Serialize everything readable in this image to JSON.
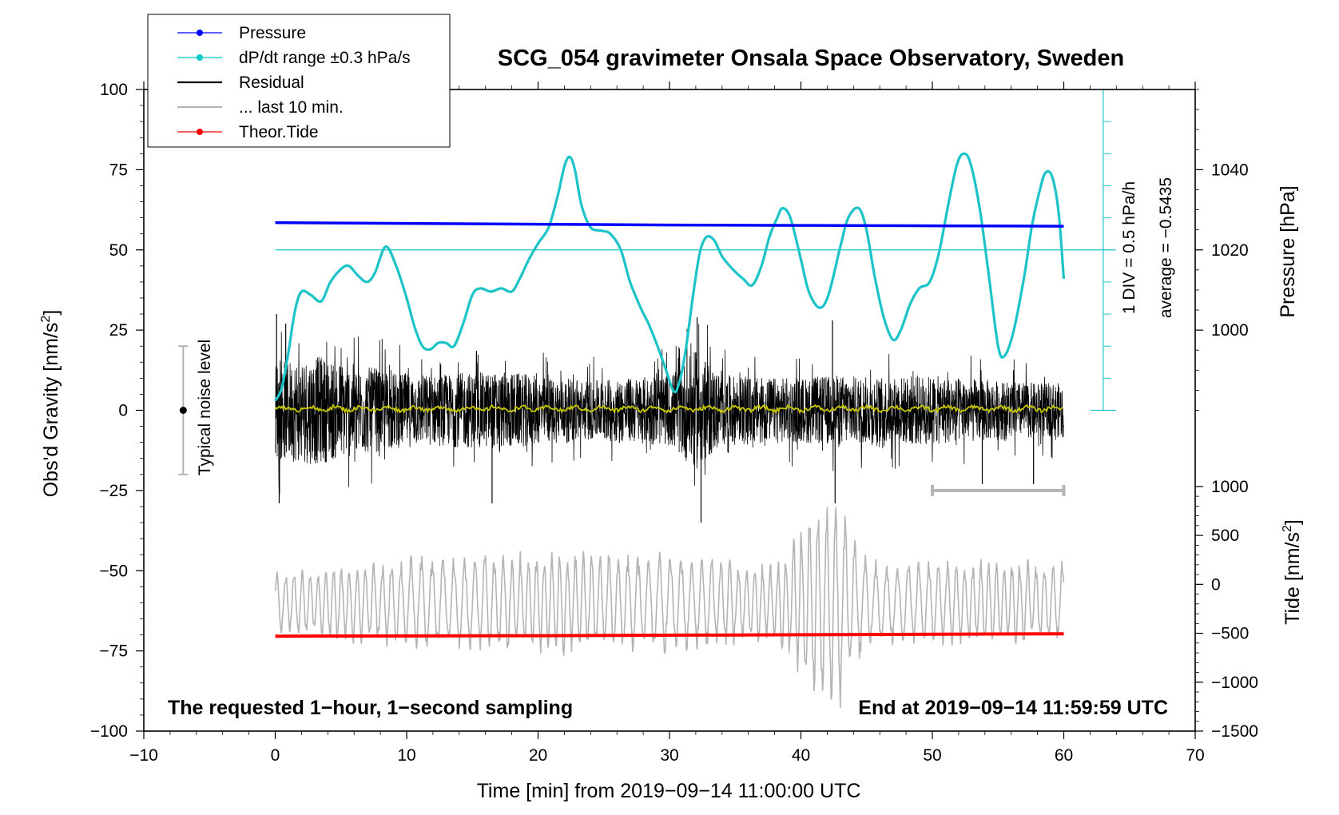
{
  "chart_data": {
    "type": "line",
    "title": "SCG_054 gravimeter Onsala Space Observatory, Sweden",
    "xlabel": "Time [min] from 2019−09−14 11:00:00 UTC",
    "ylabel_left_main": "Obs'd Gravity [nm/s",
    "ylabel_left_sup": "2",
    "ylabel_left_close": "]",
    "ylabel_right_pressure": "Pressure [hPa]",
    "ylabel_right_tide_main": "Tide [nm/s",
    "ylabel_right_tide_sup": "2",
    "ylabel_right_tide_close": "]",
    "xlim": [
      -10,
      70
    ],
    "ylim": [
      -100,
      100
    ],
    "pressure_range": [
      980,
      1060
    ],
    "tide_range": [
      -1500,
      1000
    ],
    "x_ticks": [
      {
        "value": -10,
        "label": "−10"
      },
      {
        "value": 0,
        "label": "0"
      },
      {
        "value": 10,
        "label": "10"
      },
      {
        "value": 20,
        "label": "20"
      },
      {
        "value": 30,
        "label": "30"
      },
      {
        "value": 40,
        "label": "40"
      },
      {
        "value": 50,
        "label": "50"
      },
      {
        "value": 60,
        "label": "60"
      },
      {
        "value": 70,
        "label": "70"
      }
    ],
    "y_ticks": [
      {
        "value": 100,
        "label": "100"
      },
      {
        "value": 75,
        "label": "75"
      },
      {
        "value": 50,
        "label": "50"
      },
      {
        "value": 25,
        "label": "25"
      },
      {
        "value": 0,
        "label": "0"
      },
      {
        "value": -25,
        "label": "−25"
      },
      {
        "value": -50,
        "label": "−50"
      },
      {
        "value": -75,
        "label": "−75"
      },
      {
        "value": -100,
        "label": "−100"
      }
    ],
    "pressure_ticks": [
      {
        "value": 1040,
        "label": "1040"
      },
      {
        "value": 1020,
        "label": "1020"
      },
      {
        "value": 1000,
        "label": "1000"
      }
    ],
    "tide_ticks": [
      {
        "value": 1000,
        "label": "1000"
      },
      {
        "value": 500,
        "label": "500"
      },
      {
        "value": 0,
        "label": "0"
      },
      {
        "value": -500,
        "label": "−500"
      },
      {
        "value": -1000,
        "label": "−1000"
      },
      {
        "value": -1500,
        "label": "−1500"
      }
    ],
    "legend": [
      {
        "label": "Pressure",
        "color": "#0000ff",
        "marker": true
      },
      {
        "label": "dP/dt range ±0.3 hPa/s",
        "color": "#00c8c8",
        "marker": true
      },
      {
        "label": "Residual",
        "color": "#000000",
        "marker": false
      },
      {
        "label": "... last 10 min.",
        "color": "#b4b4b4",
        "marker": false
      },
      {
        "label": "Theor.Tide",
        "color": "#ff0000",
        "marker": true
      }
    ],
    "colors": {
      "pressure": "#0000ff",
      "dpdt": "#1cc3c8",
      "residual": "#000000",
      "smoothed": "#c8c800",
      "last10": "#b4b4b4",
      "tide": "#ff0000",
      "noise": "#b4b4b4"
    },
    "series": [
      {
        "name": "Pressure",
        "axis": "pressure",
        "x": [
          0,
          10,
          20,
          30,
          40,
          50,
          60
        ],
        "values": [
          1026.8,
          1026.6,
          1026.4,
          1026.2,
          1026.1,
          1026.0,
          1025.9
        ]
      },
      {
        "name": "dP/dt",
        "axis": "left",
        "x": [
          0,
          0.5,
          1,
          1.5,
          2,
          2.7,
          3.5,
          4.2,
          5,
          5.6,
          6.3,
          7,
          7.6,
          8.4,
          9.2,
          10,
          10.6,
          11.2,
          11.8,
          12.4,
          13,
          13.6,
          14.3,
          15,
          15.6,
          16.4,
          17.2,
          18,
          18.6,
          19.3,
          20,
          20.8,
          21.5,
          22,
          22.4,
          22.8,
          23.3,
          24,
          24.8,
          25.5,
          26.3,
          27,
          27.8,
          28.4,
          29,
          29.7,
          30.3,
          30.7,
          31.2,
          31.8,
          32.3,
          32.8,
          33.4,
          34,
          34.8,
          35.6,
          36.3,
          37,
          37.6,
          38.2,
          38.6,
          39.2,
          40,
          40.6,
          41.4,
          42.1,
          43,
          43.6,
          44.4,
          45,
          45.6,
          46.3,
          47,
          47.6,
          48.3,
          49,
          49.8,
          50.5,
          51.3,
          51.9,
          52.4,
          52.9,
          53.6,
          54.3,
          55,
          55.5,
          56.2,
          57,
          57.6,
          58.2,
          58.6,
          59.1,
          59.6,
          60
        ],
        "values": [
          3,
          7,
          18,
          31,
          37,
          36,
          34,
          40,
          44,
          45,
          42,
          40,
          43,
          51,
          45,
          35,
          26,
          20,
          19,
          21,
          21,
          20,
          27,
          36,
          38,
          37,
          38,
          37,
          41,
          47,
          52,
          57,
          67,
          76,
          79,
          75,
          64,
          57,
          56,
          55,
          50,
          40,
          32,
          27,
          21,
          13,
          6,
          8,
          18,
          36,
          49,
          54,
          53,
          48,
          44,
          41,
          39,
          45,
          54,
          60,
          63,
          60,
          47,
          37,
          32,
          36,
          51,
          60,
          63,
          56,
          42,
          29,
          22,
          25,
          33,
          38,
          40,
          49,
          66,
          77,
          80,
          77,
          63,
          42,
          20,
          17,
          25,
          42,
          58,
          69,
          74,
          73,
          62,
          41
        ]
      },
      {
        "name": "Theor.Tide",
        "axis": "tide",
        "x": [
          0,
          20,
          40,
          60
        ],
        "values": [
          -530,
          -525,
          -515,
          -505
        ]
      }
    ],
    "residual": {
      "name": "Residual",
      "x_start": 0,
      "x_end": 60,
      "amplitude_profile": [
        {
          "x": 0,
          "amp": 18
        },
        {
          "x": 3,
          "amp": 20
        },
        {
          "x": 6,
          "amp": 17
        },
        {
          "x": 9,
          "amp": 14
        },
        {
          "x": 12,
          "amp": 13
        },
        {
          "x": 15,
          "amp": 14
        },
        {
          "x": 18,
          "amp": 14
        },
        {
          "x": 21,
          "amp": 12
        },
        {
          "x": 24,
          "amp": 11
        },
        {
          "x": 27,
          "amp": 12
        },
        {
          "x": 30,
          "amp": 13
        },
        {
          "x": 32,
          "amp": 22
        },
        {
          "x": 34,
          "amp": 13
        },
        {
          "x": 37,
          "amp": 12
        },
        {
          "x": 40,
          "amp": 12
        },
        {
          "x": 43,
          "amp": 13
        },
        {
          "x": 46,
          "amp": 12
        },
        {
          "x": 49,
          "amp": 13
        },
        {
          "x": 52,
          "amp": 12
        },
        {
          "x": 55,
          "amp": 11
        },
        {
          "x": 58,
          "amp": 10
        },
        {
          "x": 60,
          "amp": 10
        }
      ],
      "spikes": [
        {
          "x": 0.1,
          "value": 30
        },
        {
          "x": 0.3,
          "value": -29
        },
        {
          "x": 0.8,
          "value": 27
        },
        {
          "x": 16.5,
          "value": -29
        },
        {
          "x": 32.1,
          "value": 29
        },
        {
          "x": 32.4,
          "value": -35
        },
        {
          "x": 42.4,
          "value": 28
        },
        {
          "x": 42.6,
          "value": -29
        },
        {
          "x": 53.8,
          "value": -23
        },
        {
          "x": 57.7,
          "value": -23
        }
      ]
    },
    "smoothed_residual": {
      "name": "smoothed residual",
      "level": 0.5,
      "ripple": 1.2
    },
    "last_10_min": {
      "name": "... last 10 min.",
      "x_start": 0,
      "x_end": 60,
      "center": -60,
      "amplitude_profile": [
        {
          "x": 0,
          "amp": 10
        },
        {
          "x": 10,
          "amp": 15
        },
        {
          "x": 20,
          "amp": 17
        },
        {
          "x": 30,
          "amp": 16
        },
        {
          "x": 38,
          "amp": 13
        },
        {
          "x": 41,
          "amp": 33
        },
        {
          "x": 43,
          "amp": 34
        },
        {
          "x": 45,
          "amp": 14
        },
        {
          "x": 50,
          "amp": 14
        },
        {
          "x": 60,
          "amp": 14
        }
      ]
    },
    "range_bar": {
      "x_start": 50,
      "x_end": 60,
      "value": -25
    },
    "noise_level": {
      "x": -7,
      "center": 0,
      "low": -20,
      "high": 20,
      "label": "Typical noise level"
    },
    "pressure_scale": {
      "x": 63,
      "top": 100,
      "bottom": 0,
      "divisions": 10,
      "reference": 50,
      "label_div": "1 DIV = 0.5 hPa/h",
      "label_avg": "average = −0.5435"
    },
    "footer_left": "The requested 1−hour, 1−second sampling",
    "footer_right": "End at 2019−09−14 11:59:59 UTC"
  }
}
